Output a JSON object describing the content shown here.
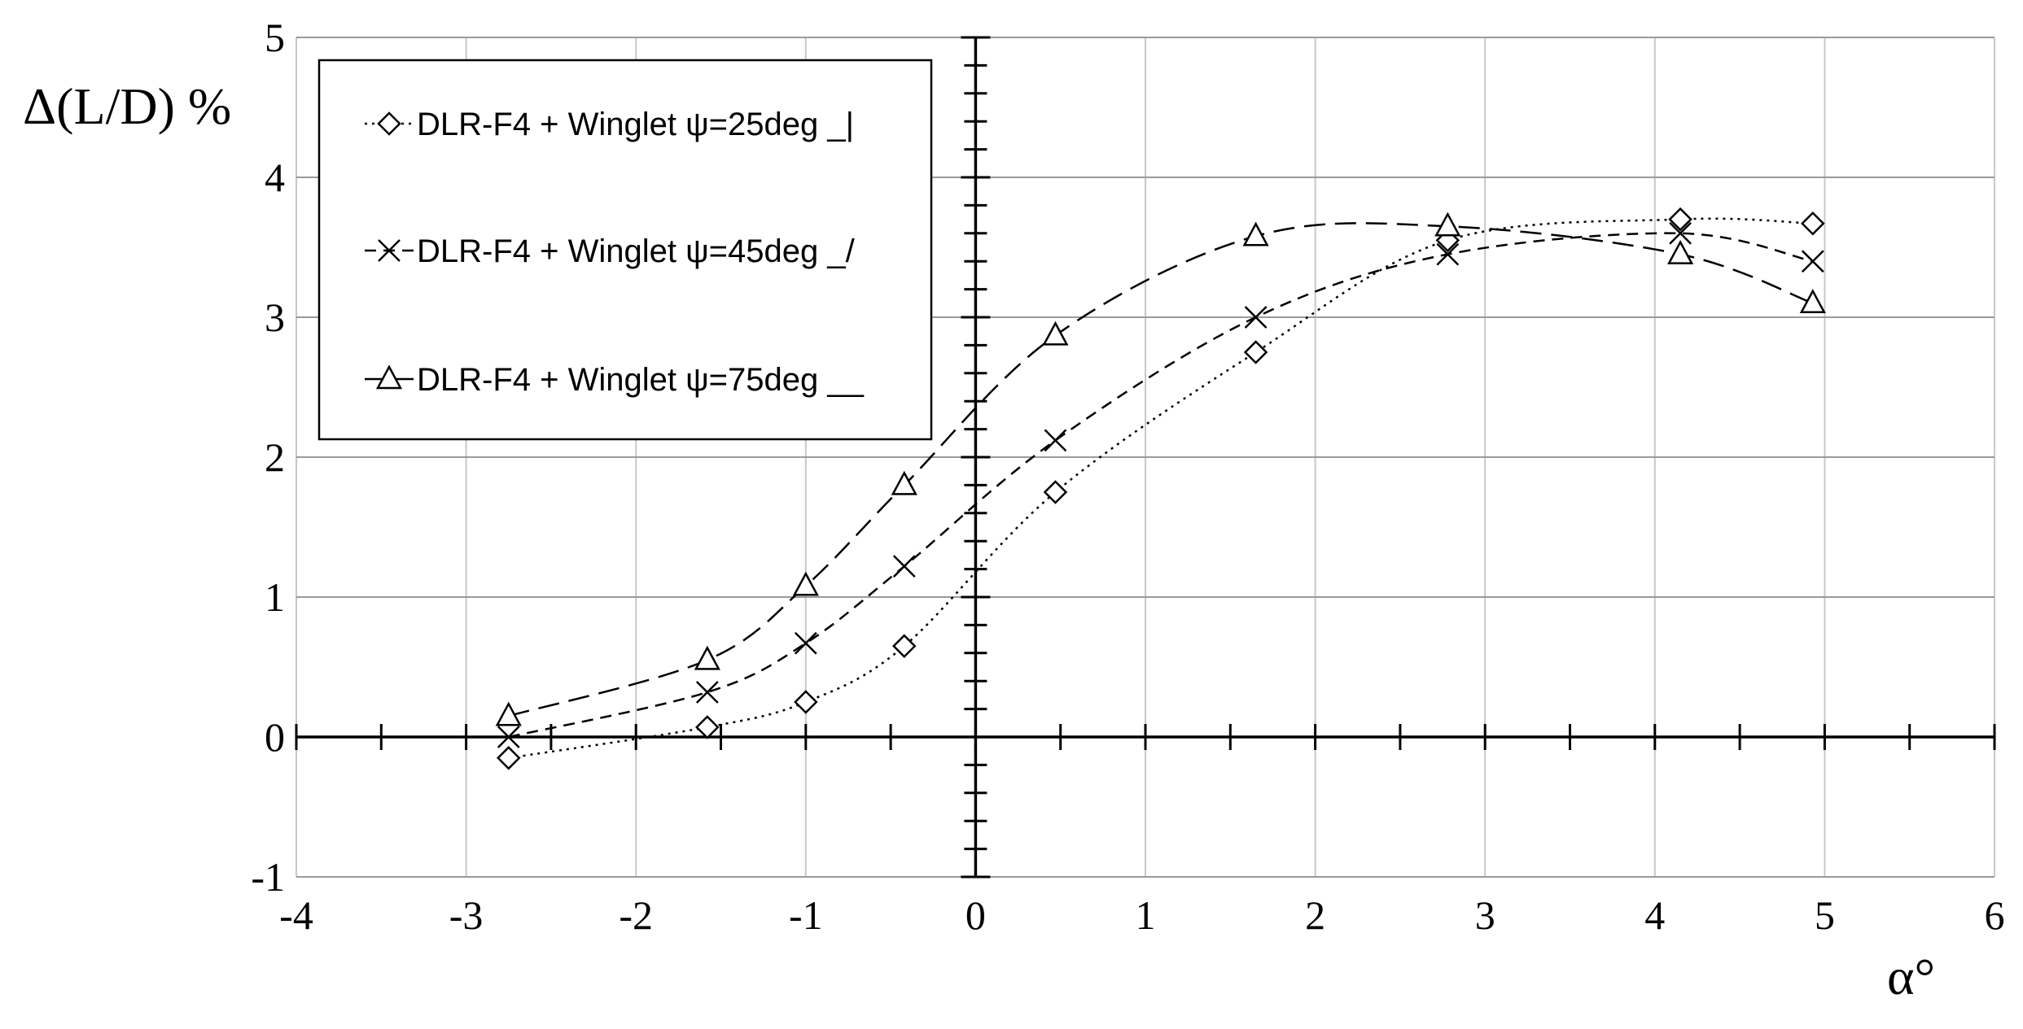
{
  "chart_data": {
    "type": "line",
    "title": "",
    "xlabel": "α°",
    "ylabel": "Δ(L/D) %",
    "xlim": [
      -4,
      6
    ],
    "ylim": [
      -1,
      5
    ],
    "x_ticks": [
      -4,
      -3,
      -2,
      -1,
      0,
      1,
      2,
      3,
      4,
      5,
      6
    ],
    "y_ticks": [
      -1,
      0,
      1,
      2,
      3,
      4,
      5
    ],
    "x_tick_labels": [
      "-4",
      "-3",
      "-2",
      "-1",
      "0",
      "1",
      "2",
      "3",
      "4",
      "5",
      "6"
    ],
    "y_tick_labels": [
      "-1",
      "0",
      "1",
      "2",
      "3",
      "4",
      "5"
    ],
    "grid": true,
    "legend_position": "top-left",
    "series": [
      {
        "name": "DLR-F4 + Winglet ψ=25deg _|",
        "marker": "diamond",
        "line_style": "dotted",
        "x": [
          -2.75,
          -1.58,
          -1.0,
          -0.42,
          0.47,
          1.65,
          2.78,
          4.15,
          4.93
        ],
        "y": [
          -0.15,
          0.07,
          0.25,
          0.65,
          1.75,
          2.75,
          3.55,
          3.7,
          3.67
        ]
      },
      {
        "name": "DLR-F4 + Winglet ψ=45deg _/",
        "marker": "x",
        "line_style": "dashed",
        "x": [
          -2.75,
          -1.58,
          -1.0,
          -0.42,
          0.47,
          1.65,
          2.78,
          4.15,
          4.93
        ],
        "y": [
          0.0,
          0.32,
          0.67,
          1.22,
          2.12,
          3.0,
          3.45,
          3.6,
          3.4
        ]
      },
      {
        "name": "DLR-F4 + Winglet ψ=75deg __",
        "marker": "triangle",
        "line_style": "long-dashed",
        "x": [
          -2.75,
          -1.58,
          -1.0,
          -0.42,
          0.47,
          1.65,
          2.78,
          4.15,
          4.93
        ],
        "y": [
          0.15,
          0.55,
          1.08,
          1.8,
          2.87,
          3.58,
          3.65,
          3.45,
          3.1
        ]
      }
    ]
  }
}
